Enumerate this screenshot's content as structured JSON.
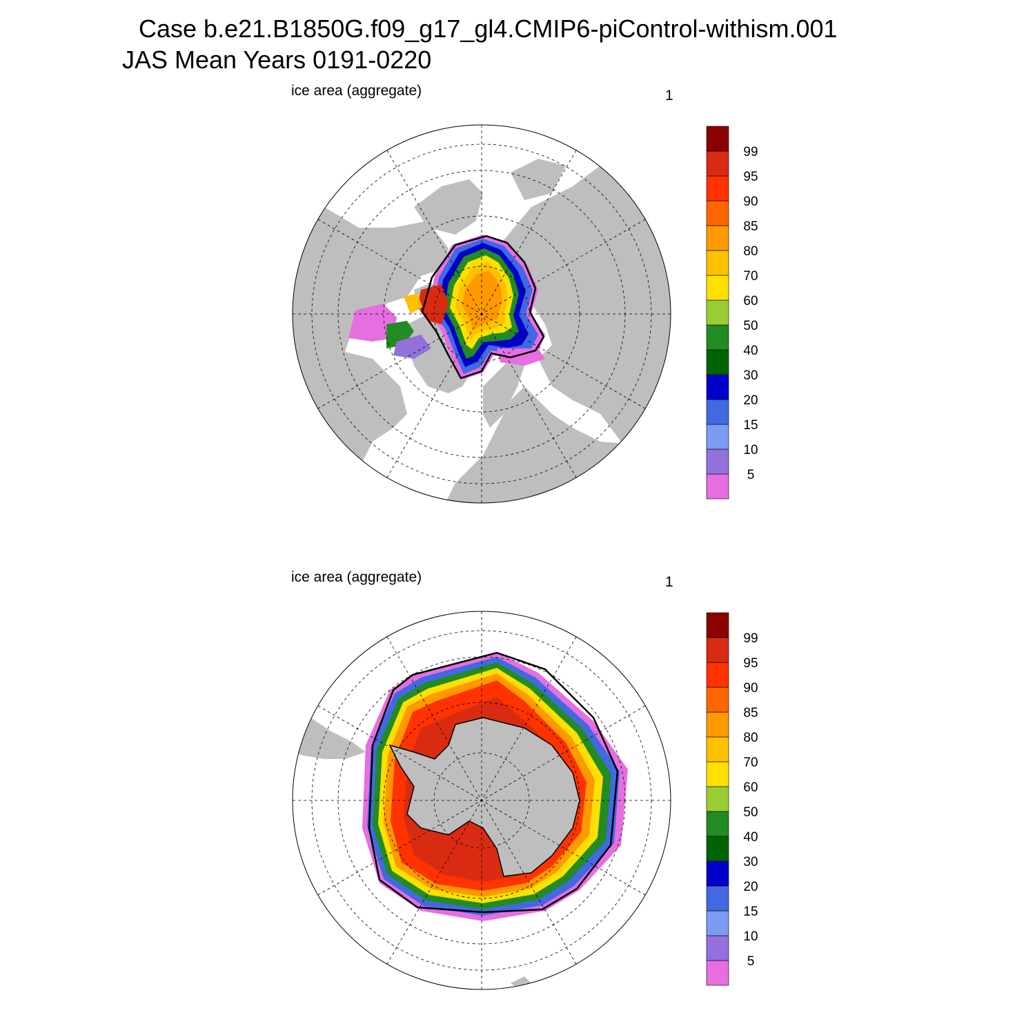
{
  "header": {
    "title_line1": "Case b.e21.B1850G.f09_g17_gl4.CMIP6-piControl-withism.001",
    "title_line2": "JAS Mean   Years 0191-0220"
  },
  "colors": {
    "land": "#bebebe",
    "ocean": "#ffffff",
    "levels": [
      "#e66ee0",
      "#9370db",
      "#7b9cf0",
      "#4169e1",
      "#0000cd",
      "#006400",
      "#228b22",
      "#9acd32",
      "#ffe000",
      "#ffc000",
      "#ff9900",
      "#ff6600",
      "#ff3300",
      "#d92b12",
      "#8b0000"
    ]
  },
  "chart_data": [
    {
      "type": "polar-stereographic-contour",
      "hemisphere": "north",
      "title": "ice area  (aggregate)",
      "panel_number": "1",
      "variable": "ice area (aggregate)",
      "units": "%",
      "colorbar": {
        "levels": [
          5,
          10,
          15,
          20,
          30,
          40,
          50,
          60,
          70,
          80,
          85,
          90,
          95,
          99
        ],
        "tick_labels": [
          "5",
          "10",
          "15",
          "20",
          "30",
          "40",
          "50",
          "60",
          "70",
          "80",
          "85",
          "90",
          "95",
          "99"
        ]
      },
      "central_pack_range": [
        70,
        90
      ],
      "observed_extent_contour": "15% black line"
    },
    {
      "type": "polar-stereographic-contour",
      "hemisphere": "south",
      "title": "ice area  (aggregate)",
      "panel_number": "1",
      "variable": "ice area (aggregate)",
      "units": "%",
      "colorbar": {
        "levels": [
          5,
          10,
          15,
          20,
          30,
          40,
          50,
          60,
          70,
          80,
          85,
          90,
          95,
          99
        ],
        "tick_labels": [
          "5",
          "10",
          "15",
          "20",
          "30",
          "40",
          "50",
          "60",
          "70",
          "80",
          "85",
          "90",
          "95",
          "99"
        ]
      },
      "central_pack_range": [
        95,
        100
      ],
      "observed_extent_contour": "15% black line"
    }
  ]
}
